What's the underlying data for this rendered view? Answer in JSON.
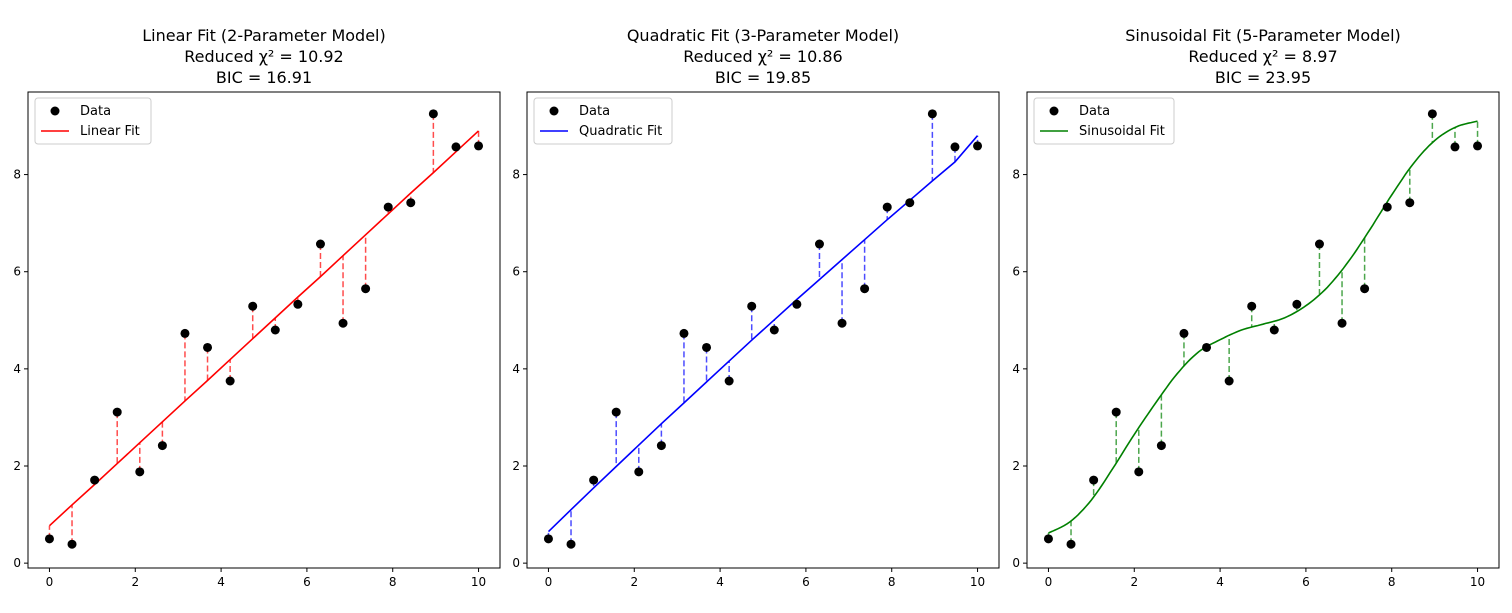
{
  "chart_data": [
    {
      "type": "scatter",
      "title": [
        "Linear Fit (2-Parameter Model)",
        "Reduced χ² = 10.92",
        "BIC = 16.91"
      ],
      "xlim": [
        -0.5,
        10.5
      ],
      "ylim": [
        -0.1,
        9.7
      ],
      "xticks": [
        0,
        2,
        4,
        6,
        8,
        10
      ],
      "xtick_labels": [
        "0",
        "2",
        "4",
        "6",
        "8",
        "10"
      ],
      "yticks": [
        0,
        2,
        4,
        6,
        8
      ],
      "ytick_labels": [
        "0",
        "2",
        "4",
        "6",
        "8"
      ],
      "legend_placement": "upper-left",
      "residual_lines": true,
      "series": [
        {
          "name": "Data",
          "kind": "points",
          "color": "#000000",
          "x": [
            0,
            0.526,
            1.053,
            1.579,
            2.105,
            2.632,
            3.158,
            3.684,
            4.211,
            4.737,
            5.263,
            5.789,
            6.316,
            6.842,
            7.368,
            7.895,
            8.421,
            8.947,
            9.474,
            10
          ],
          "y": [
            0.5,
            0.39,
            1.71,
            3.11,
            1.88,
            2.42,
            4.73,
            4.44,
            3.75,
            5.29,
            4.8,
            5.33,
            6.57,
            4.94,
            5.65,
            7.33,
            7.42,
            9.25,
            8.57,
            8.59
          ]
        },
        {
          "name": "Linear Fit",
          "kind": "line",
          "color": "#ff0000",
          "x": [
            0,
            0.526,
            1.053,
            1.579,
            2.105,
            2.632,
            3.158,
            3.684,
            4.211,
            4.737,
            5.263,
            5.789,
            6.316,
            6.842,
            7.368,
            7.895,
            8.421,
            8.947,
            9.474,
            10
          ],
          "y": [
            0.77,
            1.2,
            1.62,
            2.05,
            2.48,
            2.91,
            3.34,
            3.76,
            4.19,
            4.62,
            5.05,
            5.48,
            5.9,
            6.33,
            6.76,
            7.19,
            7.62,
            8.04,
            8.47,
            8.9
          ]
        }
      ]
    },
    {
      "type": "scatter",
      "title": [
        "Quadratic Fit (3-Parameter Model)",
        "Reduced χ² = 10.86",
        "BIC = 19.85"
      ],
      "xlim": [
        -0.5,
        10.5
      ],
      "ylim": [
        -0.1,
        9.7
      ],
      "xticks": [
        0,
        2,
        4,
        6,
        8,
        10
      ],
      "xtick_labels": [
        "0",
        "2",
        "4",
        "6",
        "8",
        "10"
      ],
      "yticks": [
        0,
        2,
        4,
        6,
        8
      ],
      "ytick_labels": [
        "0",
        "2",
        "4",
        "6",
        "8"
      ],
      "legend_placement": "upper-left",
      "residual_lines": true,
      "series": [
        {
          "name": "Data",
          "kind": "points",
          "color": "#000000",
          "x": [
            0,
            0.526,
            1.053,
            1.579,
            2.105,
            2.632,
            3.158,
            3.684,
            4.211,
            4.737,
            5.263,
            5.789,
            6.316,
            6.842,
            7.368,
            7.895,
            8.421,
            8.947,
            9.474,
            10
          ],
          "y": [
            0.5,
            0.39,
            1.71,
            3.11,
            1.88,
            2.42,
            4.73,
            4.44,
            3.75,
            5.29,
            4.8,
            5.33,
            6.57,
            4.94,
            5.65,
            7.33,
            7.42,
            9.25,
            8.57,
            8.59
          ]
        },
        {
          "name": "Quadratic Fit",
          "kind": "line",
          "color": "#0000ff",
          "x": [
            0,
            0.526,
            1.053,
            1.579,
            2.105,
            2.632,
            3.158,
            3.684,
            4.211,
            4.737,
            5.263,
            5.789,
            6.316,
            6.842,
            7.368,
            7.895,
            8.421,
            8.947,
            9.474,
            10
          ],
          "y": [
            0.65,
            1.1,
            1.55,
            1.99,
            2.43,
            2.87,
            3.3,
            3.73,
            4.16,
            4.59,
            5.01,
            5.43,
            5.84,
            6.25,
            6.66,
            7.07,
            7.47,
            7.87,
            8.26,
            8.8
          ]
        }
      ]
    },
    {
      "type": "scatter",
      "title": [
        "Sinusoidal Fit (5-Parameter Model)",
        "Reduced χ² = 8.97",
        "BIC = 23.95"
      ],
      "xlim": [
        -0.5,
        10.5
      ],
      "ylim": [
        -0.1,
        9.7
      ],
      "xticks": [
        0,
        2,
        4,
        6,
        8,
        10
      ],
      "xtick_labels": [
        "0",
        "2",
        "4",
        "6",
        "8",
        "10"
      ],
      "yticks": [
        0,
        2,
        4,
        6,
        8
      ],
      "ytick_labels": [
        "0",
        "2",
        "4",
        "6",
        "8"
      ],
      "legend_placement": "upper-left",
      "residual_lines": true,
      "series": [
        {
          "name": "Data",
          "kind": "points",
          "color": "#000000",
          "x": [
            0,
            0.526,
            1.053,
            1.579,
            2.105,
            2.632,
            3.158,
            3.684,
            4.211,
            4.737,
            5.263,
            5.789,
            6.316,
            6.842,
            7.368,
            7.895,
            8.421,
            8.947,
            9.474,
            10
          ],
          "y": [
            0.5,
            0.39,
            1.71,
            3.11,
            1.88,
            2.42,
            4.73,
            4.44,
            3.75,
            5.29,
            4.8,
            5.33,
            6.57,
            4.94,
            5.65,
            7.33,
            7.42,
            9.25,
            8.57,
            8.59
          ]
        },
        {
          "name": "Sinusoidal Fit",
          "kind": "curve",
          "color": "#008000",
          "x": [
            0,
            0.5,
            1,
            1.5,
            2,
            2.5,
            3,
            3.5,
            4,
            4.5,
            5,
            5.5,
            6,
            6.5,
            7,
            7.5,
            8,
            8.5,
            9,
            9.5,
            10
          ],
          "y": [
            0.62,
            0.85,
            1.3,
            1.95,
            2.65,
            3.3,
            3.9,
            4.35,
            4.6,
            4.8,
            4.92,
            5.05,
            5.3,
            5.68,
            6.22,
            6.88,
            7.58,
            8.22,
            8.7,
            8.98,
            9.1
          ]
        }
      ]
    }
  ]
}
